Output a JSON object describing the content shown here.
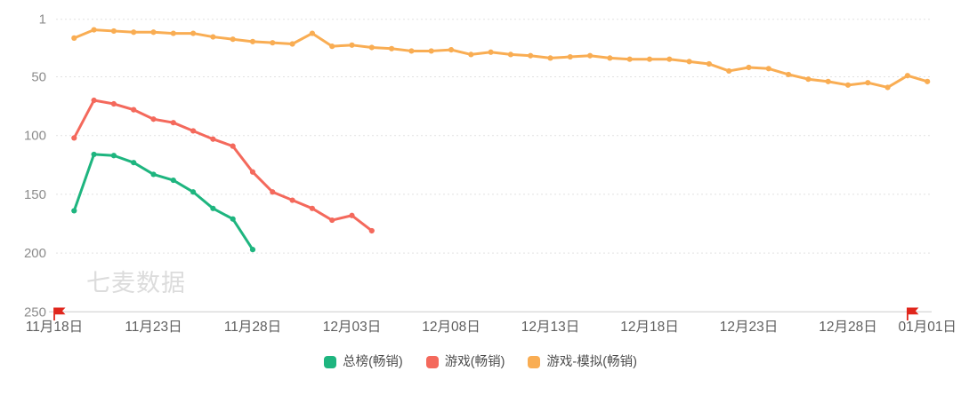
{
  "watermark": "七麦数据",
  "chart_data": {
    "type": "line",
    "title": "",
    "grid": "dotted-horizontal",
    "legend_position": "bottom",
    "y_axis": {
      "inverted": true,
      "min": 1,
      "max": 250,
      "ticks": [
        1,
        50,
        100,
        150,
        200,
        250
      ]
    },
    "x_categories": [
      "11月18日",
      "11月19日",
      "11月20日",
      "11月21日",
      "11月22日",
      "11月23日",
      "11月24日",
      "11月25日",
      "11月26日",
      "11月27日",
      "11月28日",
      "11月29日",
      "11月30日",
      "12月01日",
      "12月02日",
      "12月03日",
      "12月04日",
      "12月05日",
      "12月06日",
      "12月07日",
      "12月08日",
      "12月09日",
      "12月10日",
      "12月11日",
      "12月12日",
      "12月13日",
      "12月14日",
      "12月15日",
      "12月16日",
      "12月17日",
      "12月18日",
      "12月19日",
      "12月20日",
      "12月21日",
      "12月22日",
      "12月23日",
      "12月24日",
      "12月25日",
      "12月26日",
      "12月27日",
      "12月28日",
      "12月29日",
      "12月30日",
      "12月31日",
      "01月01日"
    ],
    "x_tick_indices": [
      0,
      5,
      10,
      15,
      20,
      25,
      30,
      35,
      40,
      44
    ],
    "series": [
      {
        "name": "总榜(畅销)",
        "color": "#1eb57f",
        "values": [
          null,
          164,
          116,
          117,
          123,
          133,
          138,
          148,
          162,
          171,
          197
        ]
      },
      {
        "name": "游戏(畅销)",
        "color": "#f4695c",
        "values": [
          null,
          102,
          70,
          73,
          78,
          86,
          89,
          96,
          103,
          109,
          131,
          148,
          155,
          162,
          172,
          168,
          181
        ]
      },
      {
        "name": "游戏-模拟(畅销)",
        "color": "#f9ad53",
        "values": [
          null,
          17,
          10,
          11,
          12,
          12,
          13,
          13,
          16,
          18,
          20,
          21,
          22,
          13,
          24,
          23,
          25,
          26,
          28,
          28,
          27,
          31,
          29,
          31,
          32,
          34,
          33,
          32,
          34,
          35,
          35,
          35,
          37,
          39,
          45,
          42,
          43,
          48,
          52,
          54,
          57,
          55,
          59,
          49,
          54
        ]
      }
    ],
    "flags": [
      {
        "icon": "red-flag-icon",
        "index": 0,
        "date": "11月18日",
        "color": "#e0261c"
      },
      {
        "icon": "red-flag-icon",
        "index": 43,
        "date": "12月31日",
        "color": "#e0261c"
      }
    ]
  }
}
